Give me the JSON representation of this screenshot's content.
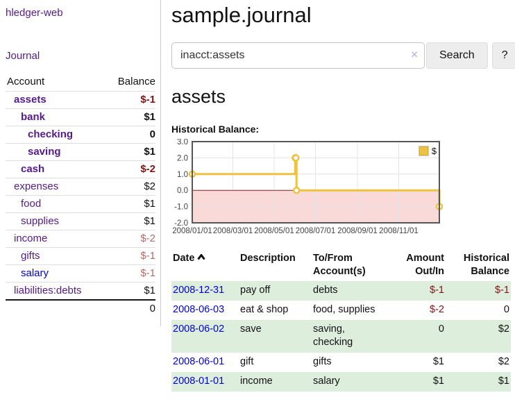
{
  "brand": "hledger-web",
  "nav": {
    "journal": "Journal"
  },
  "page": {
    "title": "sample.journal",
    "heading": "assets",
    "chart_label": "Historical Balance:"
  },
  "search": {
    "value": "inacct:assets",
    "clear": "×",
    "button": "Search",
    "help": "?"
  },
  "sidebar": {
    "col_account": "Account",
    "col_balance": "Balance",
    "accounts": [
      {
        "name": "assets",
        "depth": 1,
        "bold": true,
        "link": "visited",
        "balance": "$-1",
        "bal_class": "neg-strong"
      },
      {
        "name": "bank",
        "depth": 2,
        "bold": true,
        "link": "visited",
        "balance": "$1",
        "bal_class": ""
      },
      {
        "name": "checking",
        "depth": 3,
        "bold": true,
        "link": "visited",
        "balance": "0",
        "bal_class": ""
      },
      {
        "name": "saving",
        "depth": 3,
        "bold": true,
        "link": "visited",
        "balance": "$1",
        "bal_class": ""
      },
      {
        "name": "cash",
        "depth": 2,
        "bold": true,
        "link": "visited",
        "balance": "$-2",
        "bal_class": "neg-strong"
      },
      {
        "name": "expenses",
        "depth": 1,
        "bold": false,
        "link": "visited",
        "balance": "$2",
        "bal_class": ""
      },
      {
        "name": "food",
        "depth": 2,
        "bold": false,
        "link": "visited",
        "balance": "$1",
        "bal_class": ""
      },
      {
        "name": "supplies",
        "depth": 2,
        "bold": false,
        "link": "visited",
        "balance": "$1",
        "bal_class": ""
      },
      {
        "name": "income",
        "depth": 1,
        "bold": false,
        "link": "visited",
        "balance": "$-2",
        "bal_class": "neg-soft"
      },
      {
        "name": "gifts",
        "depth": 2,
        "bold": false,
        "link": "visited",
        "balance": "$-1",
        "bal_class": "neg-soft"
      },
      {
        "name": "salary",
        "depth": 2,
        "bold": false,
        "link": "unvisited",
        "balance": "$-1",
        "bal_class": "neg-soft"
      },
      {
        "name": "liabilities:debts",
        "depth": 1,
        "bold": false,
        "link": "visited",
        "balance": "$1",
        "bal_class": ""
      }
    ],
    "total": "0"
  },
  "chart_data": {
    "type": "line",
    "step": true,
    "title": "Historical Balance:",
    "series": [
      {
        "name": "$",
        "color": "#edc240",
        "points": [
          [
            "2008-01-01",
            1
          ],
          [
            "2008-06-01",
            2
          ],
          [
            "2008-06-02",
            2
          ],
          [
            "2008-06-03",
            0
          ],
          [
            "2008-12-31",
            -1
          ]
        ]
      }
    ],
    "x_range": [
      "2008-01-01",
      "2008-12-31"
    ],
    "x_ticks": [
      "2008/01/01",
      "2008/03/01",
      "2008/05/01",
      "2008/07/01",
      "2008/09/01",
      "2008/11/01"
    ],
    "y_ticks": [
      3.0,
      2.0,
      1.0,
      0.0,
      -1.0,
      -2.0
    ],
    "ylim": [
      -2,
      3
    ],
    "grid": true,
    "legend_position": "top-right",
    "negative_region_fill": "#fad9d9",
    "zero_line_color": "#8b1a1a",
    "grid_color": "#e4e4e4",
    "border_color": "#555555",
    "tick_label_color": "#444444"
  },
  "register": {
    "headers": {
      "date": "Date",
      "description": "Description",
      "accounts": "To/From\nAccount(s)",
      "amount": "Amount\nOut/In",
      "balance": "Historical\nBalance"
    },
    "sort_indicator": "ascending",
    "rows": [
      {
        "date": "2008-12-31",
        "description": "pay off",
        "accounts": "debts",
        "amount": "$-1",
        "amount_neg": true,
        "balance": "$-1",
        "balance_neg": true,
        "shade": true
      },
      {
        "date": "2008-06-03",
        "description": "eat & shop",
        "accounts": "food, supplies",
        "amount": "$-2",
        "amount_neg": true,
        "balance": "0",
        "balance_neg": false,
        "shade": false
      },
      {
        "date": "2008-06-02",
        "description": "save",
        "accounts": "saving,\nchecking",
        "amount": "0",
        "amount_neg": false,
        "balance": "$2",
        "balance_neg": false,
        "shade": true
      },
      {
        "date": "2008-06-01",
        "description": "gift",
        "accounts": "gifts",
        "amount": "$1",
        "amount_neg": false,
        "balance": "$2",
        "balance_neg": false,
        "shade": false
      },
      {
        "date": "2008-01-01",
        "description": "income",
        "accounts": "salary",
        "amount": "$1",
        "amount_neg": false,
        "balance": "$1",
        "balance_neg": false,
        "shade": true
      }
    ]
  }
}
